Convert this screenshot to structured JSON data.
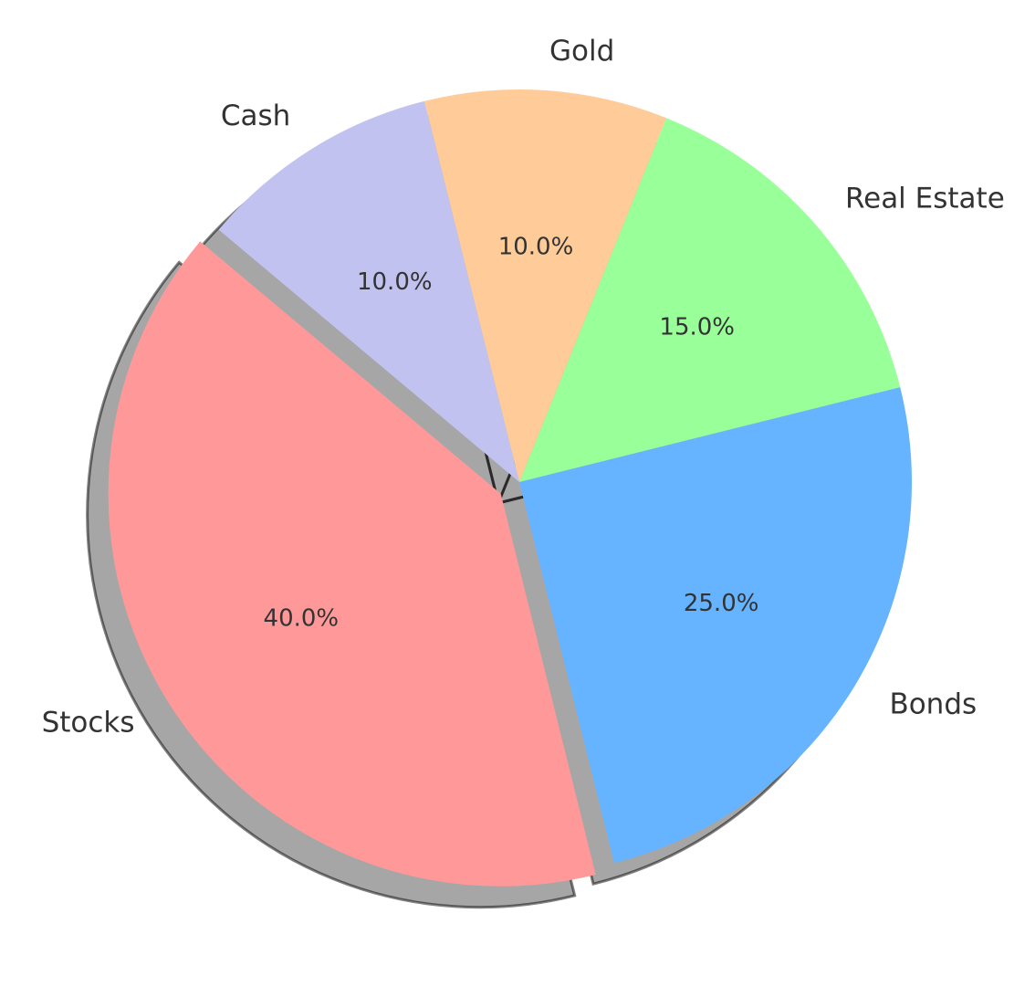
{
  "chart_data": {
    "type": "pie",
    "categories": [
      "Stocks",
      "Bonds",
      "Real Estate",
      "Gold",
      "Cash"
    ],
    "values": [
      40,
      25,
      15,
      10,
      10
    ],
    "percent_labels": [
      "40.0%",
      "25.0%",
      "15.0%",
      "10.0%",
      "10.0%"
    ],
    "colors": [
      "#ff9999",
      "#66b3ff",
      "#99ff99",
      "#ffcc99",
      "#c2c2f0"
    ],
    "exploded": [
      "Stocks"
    ],
    "shadow": true,
    "start_angle_deg": 140,
    "direction": "counterclockwise",
    "title": "",
    "legend": "none"
  }
}
